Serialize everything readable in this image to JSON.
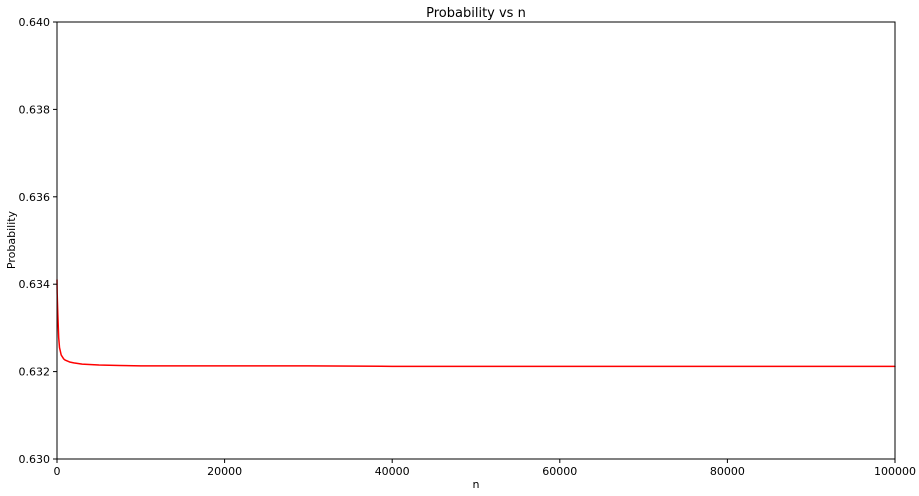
{
  "chart_data": {
    "type": "line",
    "title": "Probability vs n",
    "xlabel": "n",
    "ylabel": "Probability",
    "xlim": [
      0,
      100000
    ],
    "ylim": [
      0.63,
      0.64
    ],
    "x_ticks": [
      0,
      20000,
      40000,
      60000,
      80000,
      100000
    ],
    "x_tick_labels": [
      "0",
      "20000",
      "40000",
      "60000",
      "80000",
      "100000"
    ],
    "y_ticks": [
      0.63,
      0.632,
      0.634,
      0.636,
      0.638,
      0.64
    ],
    "y_tick_labels": [
      "0.630",
      "0.632",
      "0.634",
      "0.636",
      "0.638",
      "0.640"
    ],
    "grid": false,
    "series": [
      {
        "color": "#ff0000",
        "x": [
          1,
          20,
          50,
          100,
          200,
          300,
          500,
          800,
          1000,
          1500,
          2000,
          3000,
          5000,
          7500,
          10000,
          15000,
          20000,
          30000,
          40000,
          50000,
          60000,
          70000,
          80000,
          90000,
          100000
        ],
        "y": [
          0.6341,
          0.6338,
          0.6336,
          0.6333,
          0.63278,
          0.63255,
          0.63238,
          0.63229,
          0.63226,
          0.63222,
          0.6322,
          0.63217,
          0.63215,
          0.63214,
          0.63213,
          0.63213,
          0.63213,
          0.63213,
          0.63212,
          0.63212,
          0.63212,
          0.63212,
          0.63212,
          0.63212,
          0.63212
        ]
      }
    ]
  }
}
